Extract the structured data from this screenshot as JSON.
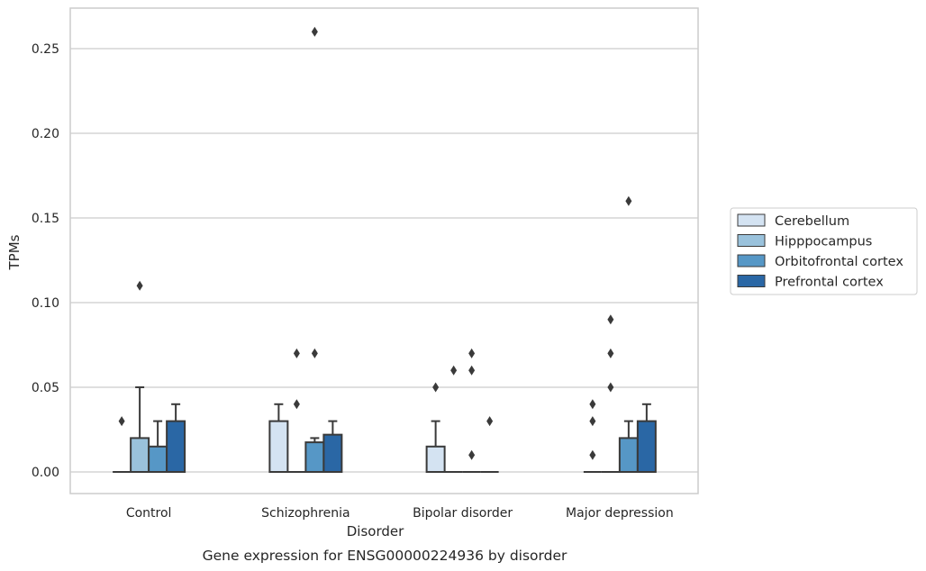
{
  "chart_data": {
    "type": "box",
    "caption": "Gene expression for ENSG00000224936 by disorder",
    "xlabel": "Disorder",
    "ylabel": "TPMs",
    "ylim": [
      -0.0125,
      0.2735
    ],
    "yticks": [
      0.0,
      0.05,
      0.1,
      0.15,
      0.2,
      0.25
    ],
    "ytick_labels": [
      "0.00",
      "0.05",
      "0.10",
      "0.15",
      "0.20",
      "0.25"
    ],
    "grid": "horizontal",
    "legend_position": "right",
    "categories": [
      "Control",
      "Schizophrenia",
      "Bipolar disorder",
      "Major depression"
    ],
    "series": [
      {
        "name": "Cerebellum",
        "color": "#d4e3f2",
        "boxes": [
          {
            "q1": 0,
            "median": 0,
            "q3": 0,
            "whisker_low": 0,
            "whisker_high": 0,
            "outliers": [
              0.03
            ]
          },
          {
            "q1": 0,
            "median": 0,
            "q3": 0.03,
            "whisker_low": 0,
            "whisker_high": 0.04,
            "outliers": []
          },
          {
            "q1": 0,
            "median": 0,
            "q3": 0.015,
            "whisker_low": 0,
            "whisker_high": 0.03,
            "outliers": [
              0.05
            ]
          },
          {
            "q1": 0,
            "median": 0,
            "q3": 0,
            "whisker_low": 0,
            "whisker_high": 0,
            "outliers": [
              0.01,
              0.03,
              0.04
            ]
          }
        ]
      },
      {
        "name": "Hipppocampus",
        "color": "#9ac2dc",
        "boxes": [
          {
            "q1": 0,
            "median": 0,
            "q3": 0.02,
            "whisker_low": 0,
            "whisker_high": 0.05,
            "outliers": [
              0.11
            ]
          },
          {
            "q1": 0,
            "median": 0,
            "q3": 0,
            "whisker_low": 0,
            "whisker_high": 0,
            "outliers": [
              0.04,
              0.07
            ]
          },
          {
            "q1": 0,
            "median": 0,
            "q3": 0,
            "whisker_low": 0,
            "whisker_high": 0,
            "outliers": [
              0.06
            ]
          },
          {
            "q1": 0,
            "median": 0,
            "q3": 0,
            "whisker_low": 0,
            "whisker_high": 0,
            "outliers": [
              0.05,
              0.07,
              0.09
            ]
          }
        ]
      },
      {
        "name": "Orbitofrontal cortex",
        "color": "#5697c6",
        "boxes": [
          {
            "q1": 0,
            "median": 0,
            "q3": 0.015,
            "whisker_low": 0,
            "whisker_high": 0.03,
            "outliers": []
          },
          {
            "q1": 0,
            "median": 0,
            "q3": 0.0175,
            "whisker_low": 0,
            "whisker_high": 0.02,
            "outliers": [
              0.07,
              0.26
            ]
          },
          {
            "q1": 0,
            "median": 0,
            "q3": 0,
            "whisker_low": 0,
            "whisker_high": 0,
            "outliers": [
              0.01,
              0.06,
              0.07
            ]
          },
          {
            "q1": 0,
            "median": 0,
            "q3": 0.02,
            "whisker_low": 0,
            "whisker_high": 0.03,
            "outliers": [
              0.16
            ]
          }
        ]
      },
      {
        "name": "Prefrontal cortex",
        "color": "#2a67a5",
        "boxes": [
          {
            "q1": 0,
            "median": 0,
            "q3": 0.03,
            "whisker_low": 0,
            "whisker_high": 0.04,
            "outliers": []
          },
          {
            "q1": 0,
            "median": 0,
            "q3": 0.022,
            "whisker_low": 0,
            "whisker_high": 0.03,
            "outliers": []
          },
          {
            "q1": 0,
            "median": 0,
            "q3": 0,
            "whisker_low": 0,
            "whisker_high": 0,
            "outliers": [
              0.03
            ]
          },
          {
            "q1": 0,
            "median": 0,
            "q3": 0.03,
            "whisker_low": 0,
            "whisker_high": 0.04,
            "outliers": []
          }
        ]
      }
    ]
  }
}
